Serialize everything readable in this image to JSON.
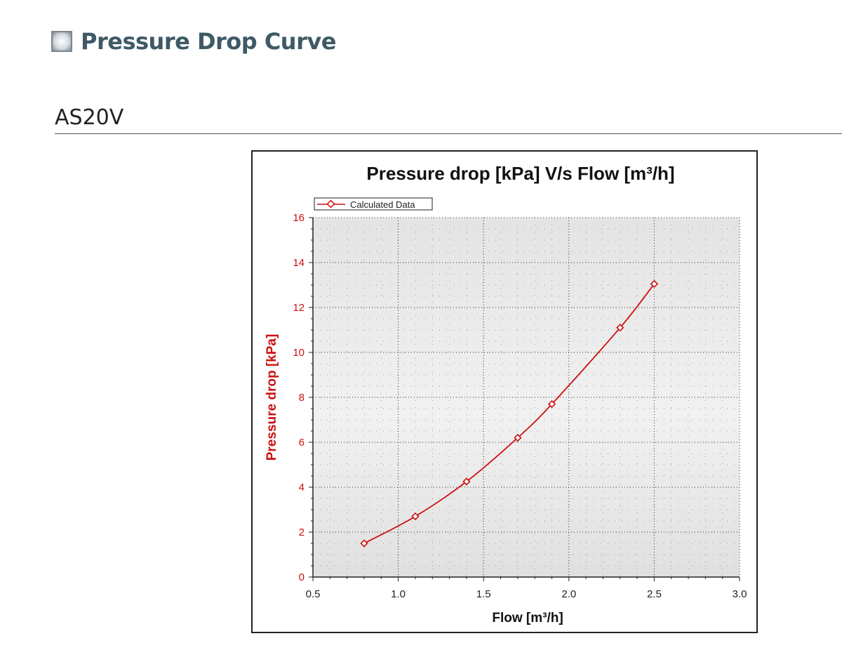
{
  "page": {
    "section_title": "Pressure Drop Curve",
    "model": "AS20V"
  },
  "colors": {
    "series": "#cc1111",
    "title_text": "#3f5966"
  },
  "chart_data": {
    "type": "line",
    "title": "Pressure drop [kPa]  V/s  Flow [m³/h]",
    "xlabel": "Flow [m³/h]",
    "ylabel": "Pressure drop [kPa]",
    "xlim": [
      0.5,
      3.0
    ],
    "ylim": [
      0,
      16
    ],
    "x_ticks": [
      "0.5",
      "1.0",
      "1.5",
      "2.0",
      "2.5",
      "3.0"
    ],
    "y_ticks": [
      "0",
      "2",
      "4",
      "6",
      "8",
      "10",
      "12",
      "14",
      "16"
    ],
    "grid": true,
    "legend_position": "top-left",
    "series": [
      {
        "name": "Calculated Data",
        "marker": "diamond",
        "x": [
          0.8,
          1.1,
          1.4,
          1.7,
          1.9,
          2.3,
          2.5
        ],
        "y": [
          1.5,
          2.7,
          4.25,
          6.2,
          7.7,
          11.1,
          13.05
        ]
      }
    ]
  }
}
